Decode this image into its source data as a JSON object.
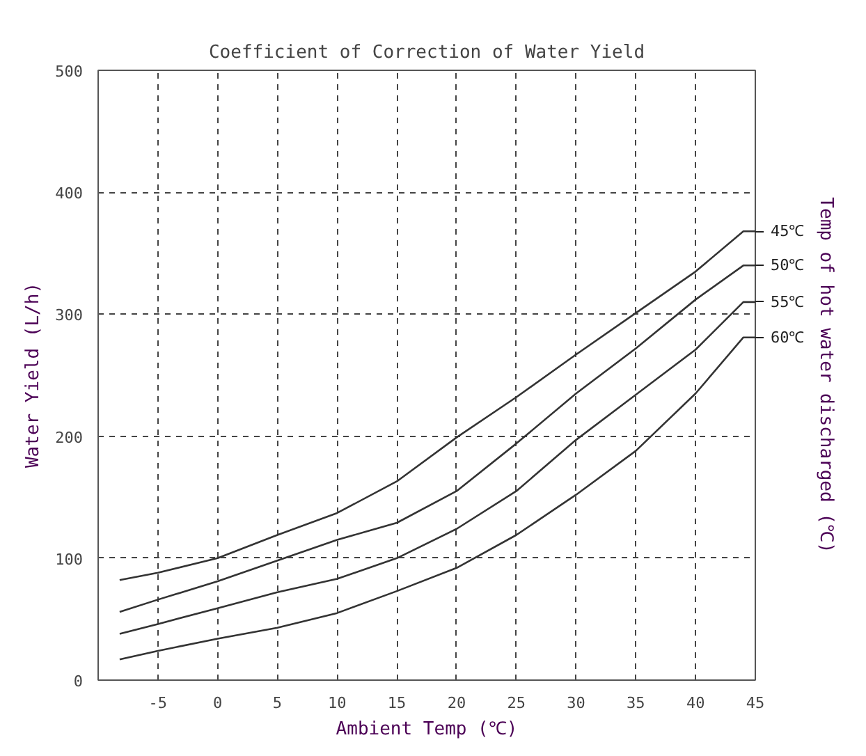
{
  "chart_data": {
    "type": "line",
    "title": "Coefficient of Correction of Water Yield",
    "xlabel": "Ambient Temp (℃)",
    "ylabel": "Water Yield (L/h)",
    "y2label": "Temp of hot water discharged (℃)",
    "x": [
      -8.2,
      -5,
      0,
      5,
      10,
      15,
      20,
      25,
      30,
      35,
      40,
      44,
      45
    ],
    "series": [
      {
        "name": "45℃",
        "color": "#333333",
        "values": [
          82,
          88,
          100,
          119,
          137,
          163,
          199,
          232,
          267,
          301,
          335,
          368,
          368
        ]
      },
      {
        "name": "50℃",
        "color": "#333333",
        "values": [
          56,
          66,
          81,
          98,
          115,
          129,
          155,
          194,
          235,
          272,
          312,
          340,
          340
        ]
      },
      {
        "name": "55℃",
        "color": "#333333",
        "values": [
          38,
          46,
          59,
          72,
          83,
          100,
          124,
          155,
          197,
          234,
          271,
          310,
          310
        ]
      },
      {
        "name": "60℃",
        "color": "#333333",
        "values": [
          17,
          24,
          34,
          43,
          55,
          73,
          92,
          119,
          152,
          188,
          235,
          281,
          281
        ]
      }
    ],
    "xlim": [
      -10,
      45
    ],
    "ylim": [
      0,
      500
    ],
    "xticks": [
      -5,
      0,
      5,
      10,
      15,
      20,
      25,
      30,
      35,
      40,
      45
    ],
    "yticks": [
      0,
      100,
      200,
      300,
      400,
      500
    ],
    "grid": true,
    "line_style": "solid"
  }
}
